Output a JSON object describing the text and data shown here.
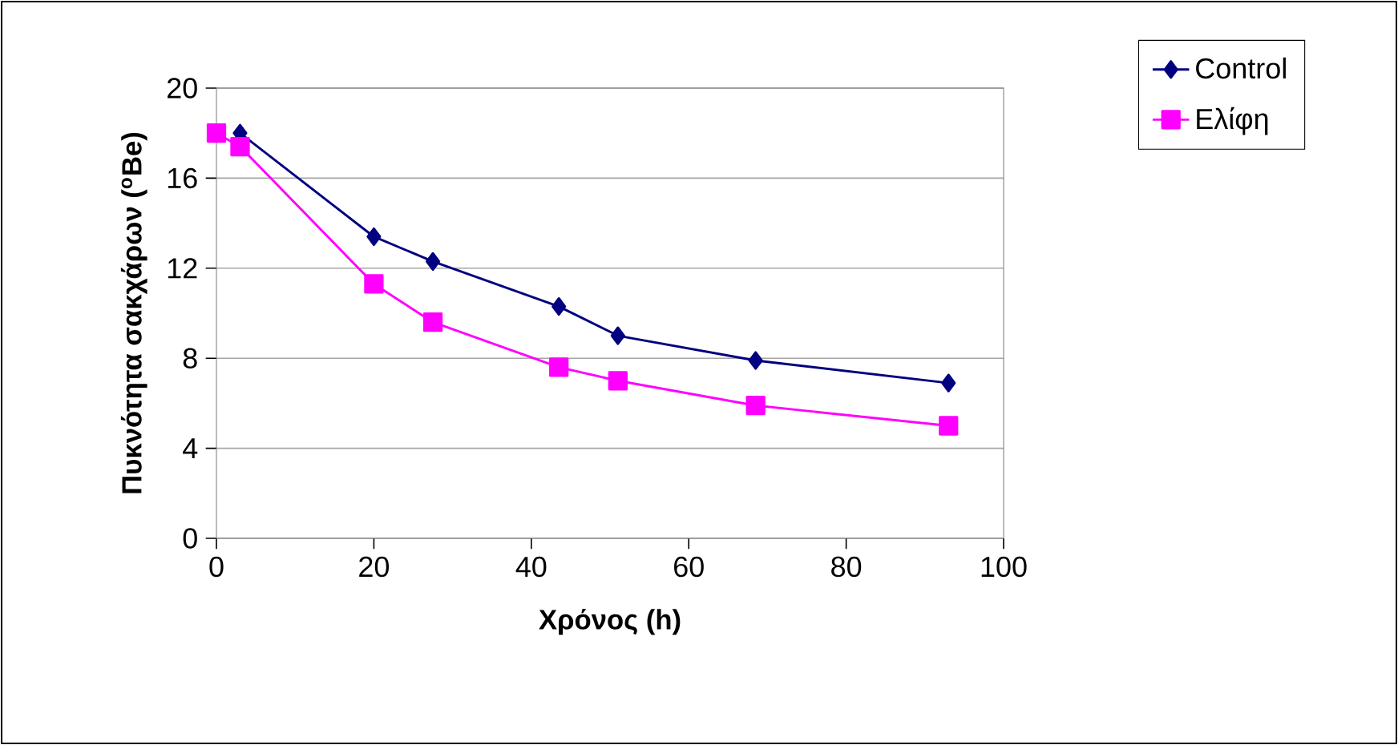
{
  "chart_data": {
    "type": "line",
    "xlabel": "Χρόνος (h)",
    "ylabel": "Πυκνότητα σακχάρων ($^{o}$Be)",
    "xlim": [
      0,
      100
    ],
    "xticks": [
      0,
      20,
      40,
      60,
      80,
      100
    ],
    "ylim": [
      0,
      20
    ],
    "yticks": [
      0,
      4,
      8,
      12,
      16,
      20
    ],
    "grid": "y",
    "legend": "top right",
    "line_style": "solid",
    "series": [
      {
        "name": "Control",
        "color": "#000080",
        "marker": "diamond",
        "x": [
          3,
          20,
          27.5,
          43.5,
          51,
          68.5,
          93
        ],
        "values": [
          18,
          13.4,
          12.3,
          10.3,
          9.0,
          7.9,
          6.9
        ]
      },
      {
        "name": "Ελίφη",
        "color": "#ff00ff",
        "marker": "square",
        "x": [
          0,
          3,
          20,
          27.5,
          43.5,
          51,
          68.5,
          93
        ],
        "values": [
          18.0,
          17.4,
          11.3,
          9.6,
          7.6,
          7.0,
          5.9,
          5.0
        ]
      }
    ]
  }
}
